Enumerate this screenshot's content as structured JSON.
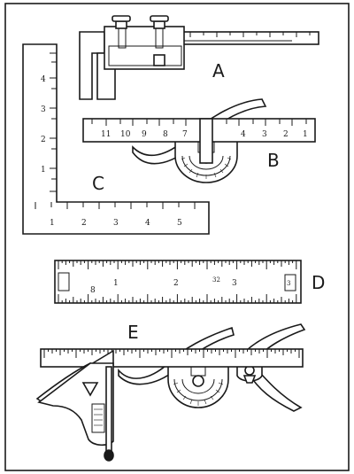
{
  "figure": {
    "labels": {
      "a": "A",
      "b": "B",
      "c": "C",
      "d": "D",
      "e": "E"
    },
    "protractor_rule_b_numbers": [
      "11",
      "10",
      "9",
      "8",
      "7",
      "4",
      "3",
      "2",
      "1"
    ],
    "square_c_vertical_numbers": [
      "4",
      "3",
      "2",
      "1"
    ],
    "square_c_horizontal_numbers": [
      "1",
      "2",
      "3",
      "4",
      "5"
    ],
    "rule_d_numbers": [
      "8",
      "1",
      "2",
      "3",
      "32",
      "3"
    ]
  }
}
